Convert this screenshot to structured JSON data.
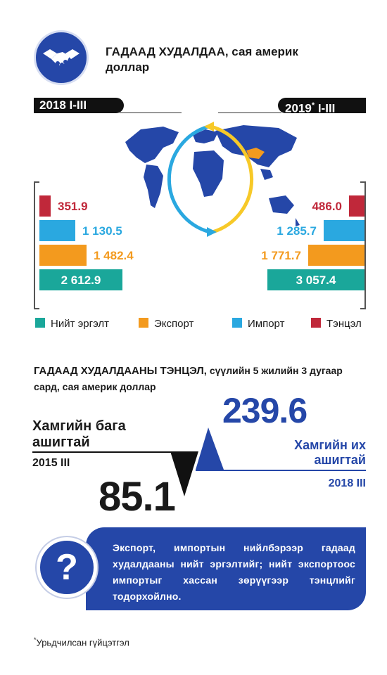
{
  "header": {
    "title": "ГАДААД ХУДАЛДАА,",
    "unit": " сая америк доллар",
    "logo_icon": "handshake-icon"
  },
  "periods": {
    "left": "2018 I-III",
    "right_year": "2019",
    "right_marker": "*",
    "right_suffix": " I-III"
  },
  "colors": {
    "total": "#1aa79a",
    "export": "#f39a1e",
    "import": "#2aa8e0",
    "balance": "#c0283a",
    "brand_blue": "#2547a8"
  },
  "chart_data": [
    {
      "type": "bar",
      "orientation": "horizontal",
      "period": "2018 I-III",
      "categories": [
        "Тэнцэл",
        "Импорт",
        "Экспорт",
        "Нийт эргэлт"
      ],
      "values": [
        351.9,
        1130.5,
        1482.4,
        2612.9
      ],
      "labels": [
        "351.9",
        "1 130.5",
        "1 482.4",
        "2 612.9"
      ]
    },
    {
      "type": "bar",
      "orientation": "horizontal",
      "period": "2019 I-III",
      "categories": [
        "Тэнцэл",
        "Импорт",
        "Экспорт",
        "Нийт эргэлт"
      ],
      "values": [
        486.0,
        1285.7,
        1771.7,
        3057.4
      ],
      "labels": [
        "486.0",
        "1 285.7",
        "1 771.7",
        "3 057.4"
      ]
    }
  ],
  "legend": [
    {
      "label": "Нийт эргэлт",
      "color": "#1aa79a"
    },
    {
      "label": "Экспорт",
      "color": "#f39a1e"
    },
    {
      "label": "Импорт",
      "color": "#2aa8e0"
    },
    {
      "label": "Тэнцэл",
      "color": "#c0283a"
    }
  ],
  "balance": {
    "title": "ГАДААД ХУДАЛДААНЫ ТЭНЦЭЛ,",
    "title_rest": " сүүлийн 5 жилийн 3 дугаар сард, сая америк доллар",
    "min_label_line1": "Хамгийн бага",
    "min_label_line2": "ашигтай",
    "min_year": "2015 III",
    "min_value": "85.1",
    "max_value": "239.6",
    "max_label_line1": "Хамгийн их",
    "max_label_line2": "ашигтай",
    "max_year": "2018 III"
  },
  "info": {
    "icon": "question-icon",
    "symbol": "?",
    "text": "Экспорт, импортын нийлбэрээр гадаад худалдааны нийт эргэлтийг; нийт экспортоос импортыг хассан зөрүүгээр тэнцлийг тодорхойлно."
  },
  "footnote": {
    "marker": "*",
    "text": "Урьдчилсан гүйцэтгэл"
  }
}
